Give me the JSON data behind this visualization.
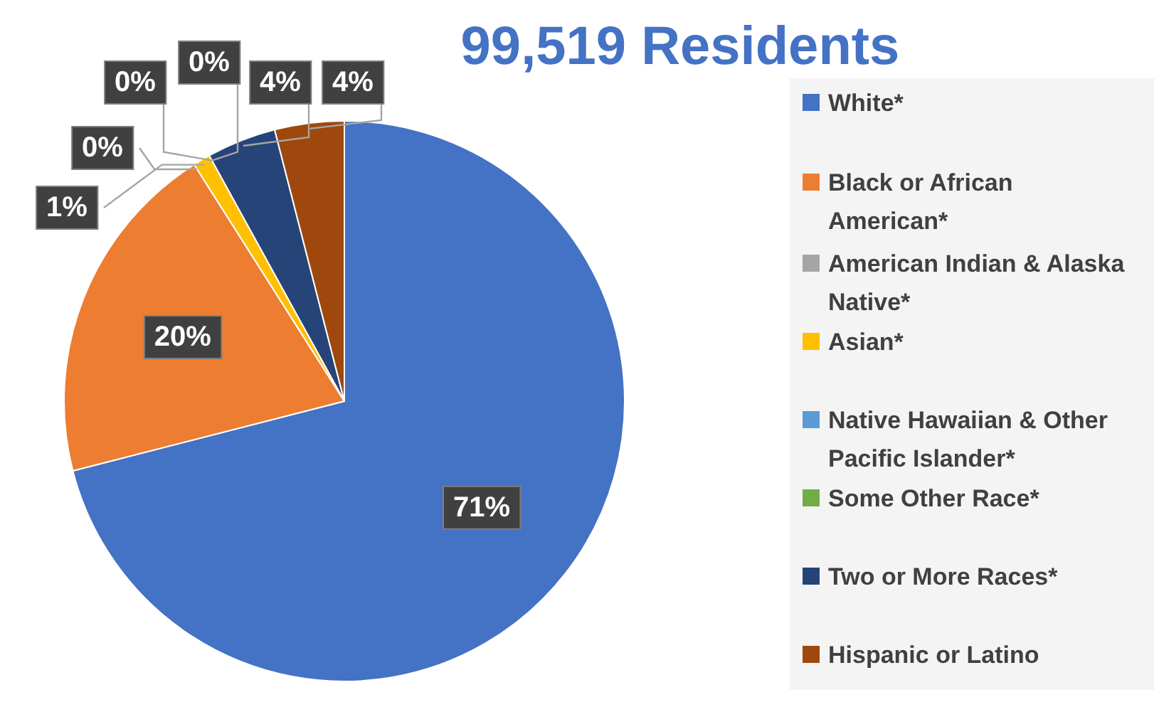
{
  "chart_data": {
    "type": "pie",
    "title": "99,519 Residents",
    "categories": [
      "White*",
      "Black or African American*",
      "American Indian & Alaska Native*",
      "Asian*",
      "Native Hawaiian & Other Pacific Islander*",
      "Some Other Race*",
      "Two or More Races*",
      "Hispanic or Latino"
    ],
    "values": [
      71,
      20,
      0,
      1,
      0,
      0,
      4,
      4
    ],
    "colors": [
      "#4472c4",
      "#ed7d31",
      "#a5a5a5",
      "#ffc000",
      "#5b9bd5",
      "#70ad47",
      "#264478",
      "#9e480e"
    ],
    "value_labels": [
      "71%",
      "20%",
      "0%",
      "1%",
      "0%",
      "0%",
      "4%",
      "4%"
    ],
    "legend": "right"
  }
}
